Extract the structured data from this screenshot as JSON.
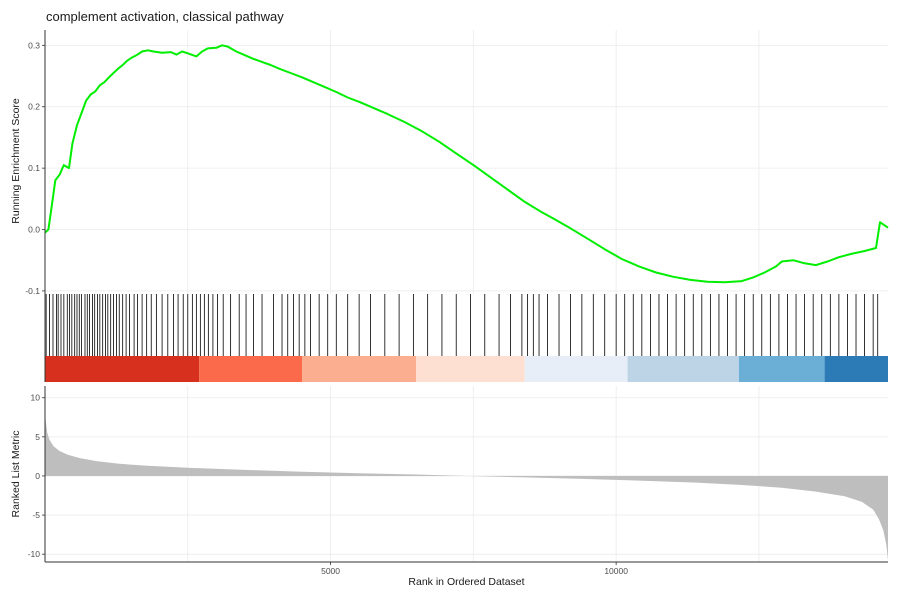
{
  "chart_data": {
    "type": "line",
    "title": "complement activation, classical pathway",
    "xlabel": "Rank in Ordered Dataset",
    "x_ticks": [
      5000,
      10000
    ],
    "xlim": [
      0,
      14760
    ],
    "grid": true,
    "running_score": {
      "ylabel": "Running Enrichment Score",
      "ylim": [
        -0.105,
        0.325
      ],
      "yticks": [
        -0.1,
        0.0,
        0.1,
        0.2,
        0.3
      ],
      "line_color": "#00ee00",
      "points": [
        [
          0,
          -0.005
        ],
        [
          60,
          0.0
        ],
        [
          120,
          0.04
        ],
        [
          180,
          0.08
        ],
        [
          260,
          0.09
        ],
        [
          330,
          0.105
        ],
        [
          420,
          0.1
        ],
        [
          480,
          0.14
        ],
        [
          560,
          0.17
        ],
        [
          640,
          0.19
        ],
        [
          720,
          0.21
        ],
        [
          800,
          0.22
        ],
        [
          880,
          0.225
        ],
        [
          960,
          0.235
        ],
        [
          1040,
          0.24
        ],
        [
          1120,
          0.248
        ],
        [
          1200,
          0.255
        ],
        [
          1280,
          0.262
        ],
        [
          1360,
          0.268
        ],
        [
          1440,
          0.275
        ],
        [
          1520,
          0.28
        ],
        [
          1620,
          0.285
        ],
        [
          1700,
          0.29
        ],
        [
          1800,
          0.292
        ],
        [
          1900,
          0.29
        ],
        [
          2050,
          0.288
        ],
        [
          2200,
          0.289
        ],
        [
          2300,
          0.285
        ],
        [
          2400,
          0.29
        ],
        [
          2500,
          0.287
        ],
        [
          2650,
          0.282
        ],
        [
          2750,
          0.29
        ],
        [
          2850,
          0.295
        ],
        [
          3000,
          0.296
        ],
        [
          3100,
          0.3
        ],
        [
          3200,
          0.298
        ],
        [
          3350,
          0.29
        ],
        [
          3500,
          0.284
        ],
        [
          3650,
          0.278
        ],
        [
          3800,
          0.273
        ],
        [
          3950,
          0.268
        ],
        [
          4100,
          0.262
        ],
        [
          4300,
          0.255
        ],
        [
          4500,
          0.248
        ],
        [
          4700,
          0.24
        ],
        [
          4900,
          0.232
        ],
        [
          5100,
          0.224
        ],
        [
          5300,
          0.215
        ],
        [
          5500,
          0.208
        ],
        [
          5700,
          0.2
        ],
        [
          6000,
          0.188
        ],
        [
          6300,
          0.175
        ],
        [
          6600,
          0.16
        ],
        [
          6900,
          0.143
        ],
        [
          7200,
          0.124
        ],
        [
          7500,
          0.105
        ],
        [
          7800,
          0.085
        ],
        [
          8100,
          0.065
        ],
        [
          8400,
          0.045
        ],
        [
          8700,
          0.028
        ],
        [
          8900,
          0.018
        ],
        [
          9200,
          0.002
        ],
        [
          9500,
          -0.015
        ],
        [
          9800,
          -0.032
        ],
        [
          10100,
          -0.048
        ],
        [
          10400,
          -0.06
        ],
        [
          10700,
          -0.07
        ],
        [
          11000,
          -0.077
        ],
        [
          11300,
          -0.082
        ],
        [
          11600,
          -0.085
        ],
        [
          11900,
          -0.086
        ],
        [
          12200,
          -0.084
        ],
        [
          12400,
          -0.078
        ],
        [
          12600,
          -0.07
        ],
        [
          12800,
          -0.06
        ],
        [
          12900,
          -0.052
        ],
        [
          13100,
          -0.05
        ],
        [
          13300,
          -0.055
        ],
        [
          13500,
          -0.058
        ],
        [
          13700,
          -0.052
        ],
        [
          13900,
          -0.045
        ],
        [
          14100,
          -0.04
        ],
        [
          14350,
          -0.035
        ],
        [
          14550,
          -0.03
        ],
        [
          14620,
          0.012
        ],
        [
          14760,
          0.003
        ]
      ]
    },
    "gene_hits": {
      "color": "#000000",
      "ranks": [
        20,
        80,
        140,
        200,
        230,
        280,
        330,
        390,
        430,
        470,
        520,
        560,
        600,
        640,
        700,
        740,
        780,
        830,
        870,
        920,
        960,
        1010,
        1060,
        1100,
        1150,
        1200,
        1250,
        1300,
        1360,
        1420,
        1480,
        1560,
        1620,
        1700,
        1780,
        1860,
        1950,
        2050,
        2150,
        2250,
        2330,
        2420,
        2500,
        2580,
        2650,
        2720,
        2790,
        2860,
        2940,
        3020,
        3120,
        3250,
        3400,
        3520,
        3650,
        3800,
        4000,
        4150,
        4250,
        4350,
        4450,
        4550,
        4650,
        4800,
        4950,
        5100,
        5300,
        5500,
        5700,
        5950,
        6200,
        6450,
        6700,
        6950,
        7200,
        7450,
        7700,
        7950,
        8150,
        8350,
        8450,
        8550,
        8650,
        8800,
        9000,
        9200,
        9400,
        9600,
        9800,
        10000,
        10150,
        10300,
        10450,
        10600,
        10750,
        10900,
        11050,
        11200,
        11350,
        11500,
        11650,
        11800,
        11950,
        12100,
        12250,
        12400,
        12550,
        12700,
        12850,
        13000,
        13150,
        13300,
        13450,
        13600,
        13750,
        13900,
        14050,
        14200,
        14350,
        14500,
        14580
      ]
    },
    "color_strip": {
      "segments": [
        {
          "x0": 0,
          "x1": 2700,
          "color": "#d7301f"
        },
        {
          "x0": 2700,
          "x1": 4500,
          "color": "#fb6a4a"
        },
        {
          "x0": 4500,
          "x1": 6500,
          "color": "#fcae91"
        },
        {
          "x0": 6500,
          "x1": 8400,
          "color": "#fee0d2"
        },
        {
          "x0": 8400,
          "x1": 10200,
          "color": "#e8eef8"
        },
        {
          "x0": 10200,
          "x1": 12150,
          "color": "#bdd4e7"
        },
        {
          "x0": 12150,
          "x1": 13650,
          "color": "#6baed6"
        },
        {
          "x0": 13650,
          "x1": 14760,
          "color": "#2c7bb6"
        }
      ]
    },
    "ranked_metric": {
      "ylabel": "Ranked List Metric",
      "ylim": [
        -11,
        11.5
      ],
      "yticks": [
        -10,
        -5,
        0,
        5,
        10
      ],
      "fill_color": "#bebebe",
      "points": [
        [
          0,
          8
        ],
        [
          15,
          6.8
        ],
        [
          40,
          5.5
        ],
        [
          80,
          4.6
        ],
        [
          150,
          3.8
        ],
        [
          250,
          3.2
        ],
        [
          400,
          2.7
        ],
        [
          600,
          2.3
        ],
        [
          900,
          1.9
        ],
        [
          1300,
          1.55
        ],
        [
          1800,
          1.3
        ],
        [
          2500,
          1.05
        ],
        [
          3500,
          0.78
        ],
        [
          4500,
          0.55
        ],
        [
          5500,
          0.35
        ],
        [
          6500,
          0.18
        ],
        [
          7400,
          0.0
        ],
        [
          8400,
          -0.18
        ],
        [
          9400,
          -0.38
        ],
        [
          10400,
          -0.6
        ],
        [
          11400,
          -0.85
        ],
        [
          12200,
          -1.15
        ],
        [
          12900,
          -1.5
        ],
        [
          13500,
          -2.0
        ],
        [
          14000,
          -2.6
        ],
        [
          14300,
          -3.3
        ],
        [
          14500,
          -4.3
        ],
        [
          14600,
          -5.5
        ],
        [
          14680,
          -7.0
        ],
        [
          14730,
          -8.8
        ],
        [
          14760,
          -10.8
        ]
      ]
    }
  }
}
